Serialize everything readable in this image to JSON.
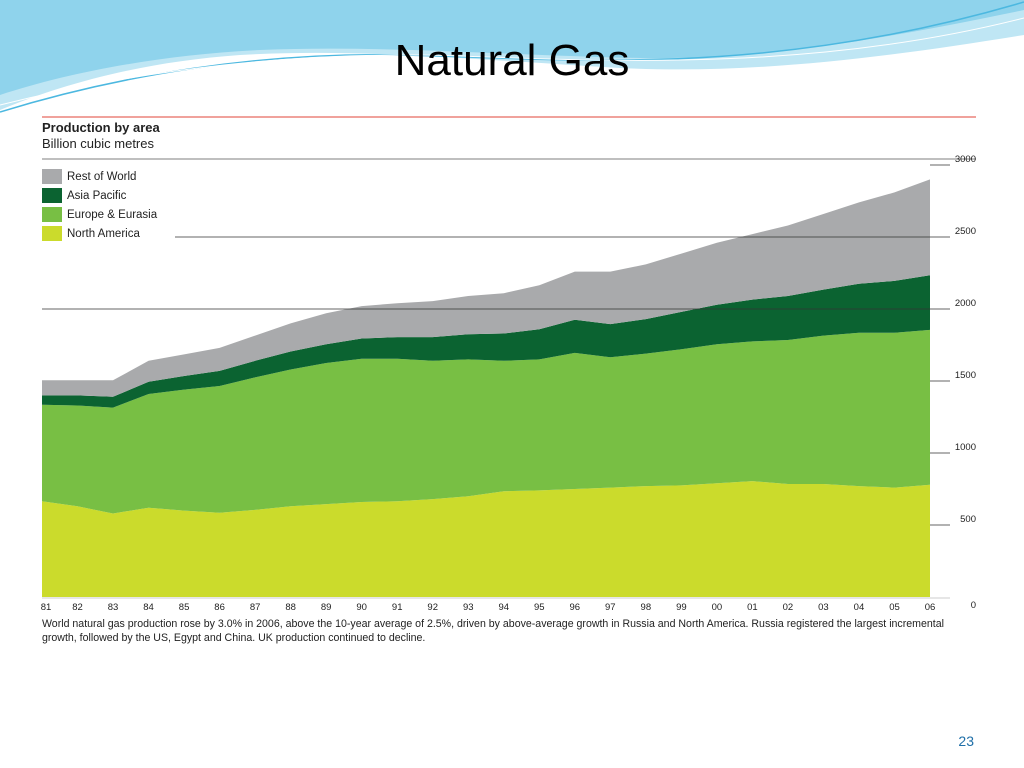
{
  "slide": {
    "title": "Natural Gas",
    "page_number": "23",
    "caption": "World natural gas production rose by 3.0% in 2006, above the 10-year average of 2.5%, driven by above-average growth in Russia and North America. Russia registered the largest incremental growth, followed by the US, Egypt and China. UK production continued to decline."
  },
  "colors": {
    "rest_of_world": "#a9aaac",
    "asia_pacific": "#0b6331",
    "europe_eurasia": "#78bf44",
    "north_america": "#cbdb2c",
    "rule_red": "#e2443a",
    "swoosh": "#4cb8e0"
  },
  "chart_data": {
    "type": "area",
    "stacked": true,
    "title": "Production by area",
    "subtitle": "Billion cubic metres",
    "x": [
      "81",
      "82",
      "83",
      "84",
      "85",
      "86",
      "87",
      "88",
      "89",
      "90",
      "91",
      "92",
      "93",
      "94",
      "95",
      "96",
      "97",
      "98",
      "99",
      "00",
      "01",
      "02",
      "03",
      "04",
      "05",
      "06"
    ],
    "ylim": [
      0,
      3000
    ],
    "y_ticks": [
      "0",
      "500",
      "1000",
      "1500",
      "2000",
      "2500",
      "3000"
    ],
    "grid": "horizontal lines at 2000, 2500, 3000",
    "legend_position": "top-left",
    "series": [
      {
        "name": "North America",
        "color": "#cbdb2c",
        "values": [
          665,
          630,
          580,
          620,
          600,
          585,
          605,
          630,
          645,
          660,
          665,
          680,
          700,
          735,
          740,
          750,
          760,
          770,
          775,
          790,
          805,
          785,
          785,
          770,
          760,
          780
        ]
      },
      {
        "name": "Europe & Eurasia",
        "color": "#78bf44",
        "values": [
          670,
          700,
          735,
          790,
          840,
          880,
          920,
          950,
          980,
          995,
          990,
          960,
          950,
          905,
          910,
          945,
          905,
          920,
          945,
          965,
          970,
          1000,
          1030,
          1065,
          1075,
          1075
        ]
      },
      {
        "name": "Asia Pacific",
        "color": "#0b6331",
        "values": [
          65,
          70,
          75,
          85,
          95,
          105,
          115,
          125,
          130,
          140,
          150,
          165,
          175,
          190,
          210,
          230,
          230,
          240,
          260,
          275,
          290,
          305,
          320,
          340,
          360,
          380
        ]
      },
      {
        "name": "Rest of World",
        "color": "#a9aaac",
        "values": [
          105,
          105,
          115,
          145,
          150,
          160,
          175,
          195,
          215,
          225,
          235,
          250,
          265,
          280,
          305,
          335,
          365,
          380,
          405,
          430,
          455,
          490,
          525,
          565,
          615,
          665
        ]
      }
    ]
  }
}
